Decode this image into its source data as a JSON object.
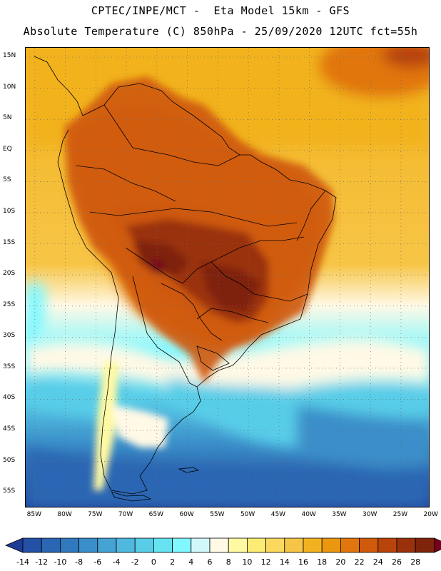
{
  "header": {
    "title_line1": "CPTEC/INPE/MCT -  Eta Model 15km - GFS",
    "title_line2": "Absolute Temperature (C) 850hPa - 25/09/2020 12UTC fct=55h"
  },
  "map": {
    "lat_labels": [
      "15N",
      "10N",
      "5N",
      "EQ",
      "5S",
      "10S",
      "15S",
      "20S",
      "25S",
      "30S",
      "35S",
      "40S",
      "45S",
      "50S",
      "55S"
    ],
    "lon_labels": [
      "85W",
      "80W",
      "75W",
      "70W",
      "65W",
      "60W",
      "55W",
      "50W",
      "45W",
      "40W",
      "35W",
      "30W",
      "25W",
      "20W"
    ],
    "lat_range": [
      -57.5,
      16.5
    ],
    "lon_range": [
      -86.5,
      -20.2
    ],
    "grid": true
  },
  "colorbar": {
    "tick_labels": [
      "-14",
      "-12",
      "-10",
      "-8",
      "-6",
      "-4",
      "-2",
      "0",
      "2",
      "4",
      "6",
      "8",
      "10",
      "12",
      "14",
      "16",
      "18",
      "20",
      "22",
      "24",
      "26",
      "28"
    ],
    "colors": [
      "#1e3c96",
      "#2251a5",
      "#2a66b3",
      "#3179bf",
      "#3a8ec9",
      "#45a3d4",
      "#4fb8de",
      "#59cde8",
      "#66e3f0",
      "#7ff8ff",
      "#d2f7fb",
      "#fff9e6",
      "#fff9a3",
      "#fdec73",
      "#fbd95f",
      "#f7c546",
      "#f2b21f",
      "#eb9810",
      "#e1760e",
      "#cf5a0c",
      "#b8430b",
      "#9a310a",
      "#7f240b",
      "#76001c"
    ]
  }
}
